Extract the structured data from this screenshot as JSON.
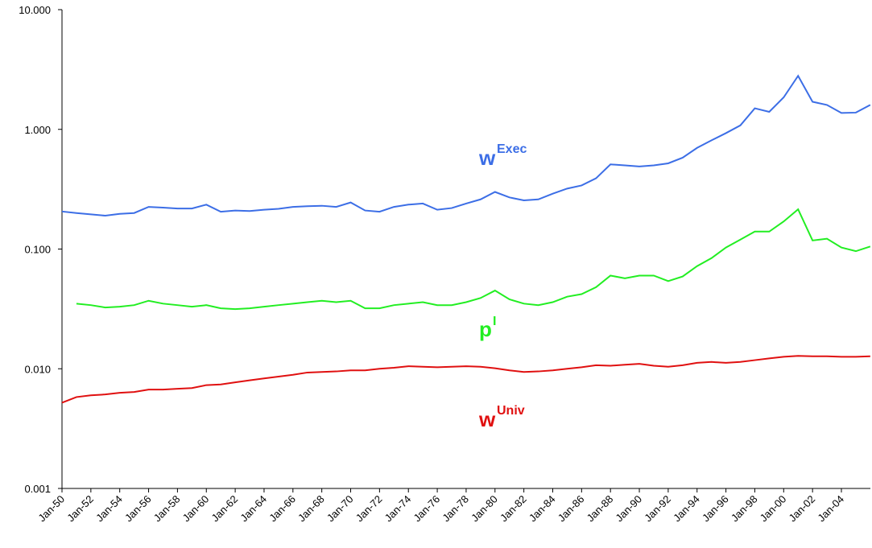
{
  "chart_data": {
    "type": "line",
    "log_y": true,
    "categories": [
      "Jan-50",
      null,
      "Jan-52",
      null,
      "Jan-54",
      null,
      "Jan-56",
      null,
      "Jan-58",
      null,
      "Jan-60",
      null,
      "Jan-62",
      null,
      "Jan-64",
      null,
      "Jan-66",
      null,
      "Jan-68",
      null,
      "Jan-70",
      null,
      "Jan-72",
      null,
      "Jan-74",
      null,
      "Jan-76",
      null,
      "Jan-78",
      null,
      "Jan-80",
      null,
      "Jan-82",
      null,
      "Jan-84",
      null,
      "Jan-86",
      null,
      "Jan-88",
      null,
      "Jan-90",
      null,
      "Jan-92",
      null,
      "Jan-94",
      null,
      "Jan-96",
      null,
      "Jan-98",
      null,
      "Jan-00",
      null,
      "Jan-02",
      null,
      "Jan-04",
      null,
      null
    ],
    "ylim": [
      0.001,
      10
    ],
    "yticks": [
      {
        "value": 0.001,
        "label": "0.001"
      },
      {
        "value": 0.01,
        "label": "0.010"
      },
      {
        "value": 0.1,
        "label": "0.100"
      },
      {
        "value": 1,
        "label": "1.000"
      },
      {
        "value": 10,
        "label": "10.000"
      }
    ],
    "series": [
      {
        "name": "w",
        "sup": "Exec",
        "color": "#3c6ee6",
        "values": [
          0.206,
          0.2,
          0.195,
          0.19,
          0.197,
          0.2,
          0.225,
          0.222,
          0.218,
          0.218,
          0.235,
          0.205,
          0.21,
          0.208,
          0.213,
          0.217,
          0.225,
          0.228,
          0.23,
          0.225,
          0.245,
          0.21,
          0.205,
          0.225,
          0.235,
          0.24,
          0.213,
          0.22,
          0.24,
          0.26,
          0.3,
          0.27,
          0.255,
          0.26,
          0.29,
          0.32,
          0.34,
          0.39,
          0.51,
          0.5,
          0.49,
          0.5,
          0.52,
          0.58,
          0.7,
          0.81,
          0.93,
          1.08,
          1.5,
          1.4,
          1.85,
          2.8,
          1.7,
          1.6,
          1.37,
          1.38,
          1.6
        ]
      },
      {
        "name": "p",
        "sup": "I",
        "color": "#22ee22",
        "values": [
          null,
          0.035,
          0.034,
          0.0325,
          0.033,
          0.034,
          0.037,
          0.035,
          0.034,
          0.033,
          0.034,
          0.032,
          0.0315,
          0.032,
          0.033,
          0.034,
          0.035,
          0.036,
          0.037,
          0.036,
          0.037,
          0.032,
          0.032,
          0.034,
          0.035,
          0.036,
          0.034,
          0.034,
          0.036,
          0.039,
          0.045,
          0.038,
          0.035,
          0.034,
          0.036,
          0.04,
          0.042,
          0.048,
          0.06,
          0.057,
          0.06,
          0.06,
          0.054,
          0.059,
          0.072,
          0.084,
          0.103,
          0.12,
          0.14,
          0.14,
          0.17,
          0.215,
          0.118,
          0.122,
          0.103,
          0.096,
          0.105
        ]
      },
      {
        "name": "w",
        "sup": "Univ",
        "color": "#e01010",
        "values": [
          0.0052,
          0.0058,
          0.006,
          0.0061,
          0.0063,
          0.0064,
          0.0067,
          0.0067,
          0.0068,
          0.0069,
          0.0073,
          0.0074,
          0.0077,
          0.008,
          0.0083,
          0.0086,
          0.0089,
          0.0093,
          0.0094,
          0.0095,
          0.0097,
          0.0097,
          0.01,
          0.0102,
          0.0105,
          0.0104,
          0.0103,
          0.0104,
          0.0105,
          0.0104,
          0.0101,
          0.0097,
          0.0094,
          0.0095,
          0.0097,
          0.01,
          0.0103,
          0.0107,
          0.0106,
          0.0108,
          0.011,
          0.0106,
          0.0104,
          0.0107,
          0.0112,
          0.0114,
          0.0112,
          0.0114,
          0.0118,
          0.0122,
          0.0126,
          0.0128,
          0.0127,
          0.0127,
          0.0126,
          0.0126,
          0.0127
        ]
      }
    ]
  }
}
